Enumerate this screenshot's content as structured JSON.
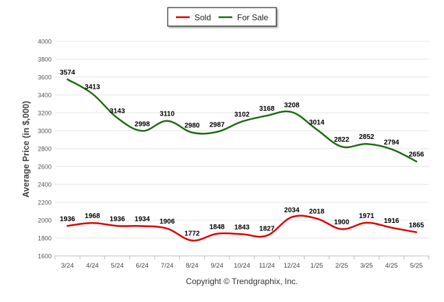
{
  "chart_data": {
    "type": "line",
    "title": "",
    "xlabel": "",
    "ylabel": "Average Price (in $,000)",
    "categories": [
      "3/24",
      "4/24",
      "5/24",
      "6/24",
      "7/24",
      "8/24",
      "9/24",
      "10/24",
      "11/24",
      "12/24",
      "1/25",
      "2/25",
      "3/25",
      "4/25",
      "5/25"
    ],
    "ylim": [
      1600,
      4000
    ],
    "yticks": [
      1600,
      1800,
      2000,
      2200,
      2400,
      2600,
      2800,
      3000,
      3200,
      3400,
      3600,
      3800,
      4000
    ],
    "grid": true,
    "legend_position": "top-center",
    "series": [
      {
        "name": "Sold",
        "color": "#dd0000",
        "values": [
          1936,
          1968,
          1936,
          1934,
          1906,
          1772,
          1848,
          1843,
          1827,
          2034,
          2018,
          1900,
          1971,
          1916,
          1865
        ]
      },
      {
        "name": "For Sale",
        "color": "#1e6b12",
        "values": [
          3574,
          3413,
          3143,
          2998,
          3110,
          2980,
          2987,
          3102,
          3168,
          3208,
          3014,
          2822,
          2852,
          2794,
          2656
        ]
      }
    ],
    "footnote": "Copyright © Trendgraphix, Inc."
  }
}
